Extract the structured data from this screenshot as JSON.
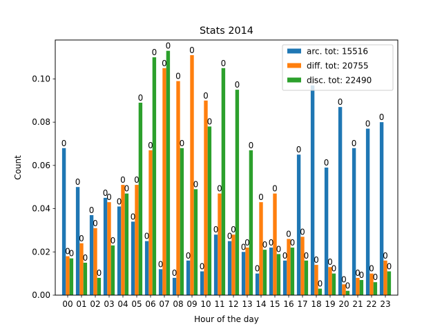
{
  "chart_data": {
    "type": "bar",
    "title": "Stats 2014",
    "xlabel": "Hour of the day",
    "ylabel": "Count",
    "categories": [
      "00",
      "01",
      "02",
      "03",
      "04",
      "05",
      "06",
      "07",
      "08",
      "09",
      "10",
      "11",
      "12",
      "13",
      "14",
      "15",
      "16",
      "17",
      "18",
      "19",
      "20",
      "21",
      "22",
      "23"
    ],
    "ylim": [
      0,
      0.118
    ],
    "yticks": [
      "0.00",
      "0.02",
      "0.04",
      "0.06",
      "0.08",
      "0.10"
    ],
    "grid": false,
    "legend_position": "top-right",
    "bar_label_text": "0",
    "series": [
      {
        "name": "arc. tot: 15516",
        "color": "#1f77b4",
        "values": [
          0.068,
          0.05,
          0.037,
          0.045,
          0.041,
          0.034,
          0.025,
          0.012,
          0.008,
          0.016,
          0.011,
          0.028,
          0.025,
          0.02,
          0.01,
          0.022,
          0.016,
          0.065,
          0.097,
          0.059,
          0.087,
          0.068,
          0.077,
          0.08
        ]
      },
      {
        "name": "diff. tot: 20755",
        "color": "#ff7f0e",
        "values": [
          0.018,
          0.024,
          0.031,
          0.043,
          0.051,
          0.051,
          0.067,
          0.105,
          0.099,
          0.111,
          0.09,
          0.047,
          0.028,
          0.022,
          0.043,
          0.047,
          0.026,
          0.027,
          0.014,
          0.013,
          0.005,
          0.008,
          0.01,
          0.016
        ]
      },
      {
        "name": "disc. tot: 22490",
        "color": "#2ca02c",
        "values": [
          0.017,
          0.015,
          0.008,
          0.023,
          0.047,
          0.089,
          0.11,
          0.113,
          0.068,
          0.049,
          0.078,
          0.105,
          0.095,
          0.067,
          0.021,
          0.019,
          0.022,
          0.016,
          0.003,
          0.01,
          0.002,
          0.007,
          0.006,
          0.011
        ]
      }
    ]
  }
}
